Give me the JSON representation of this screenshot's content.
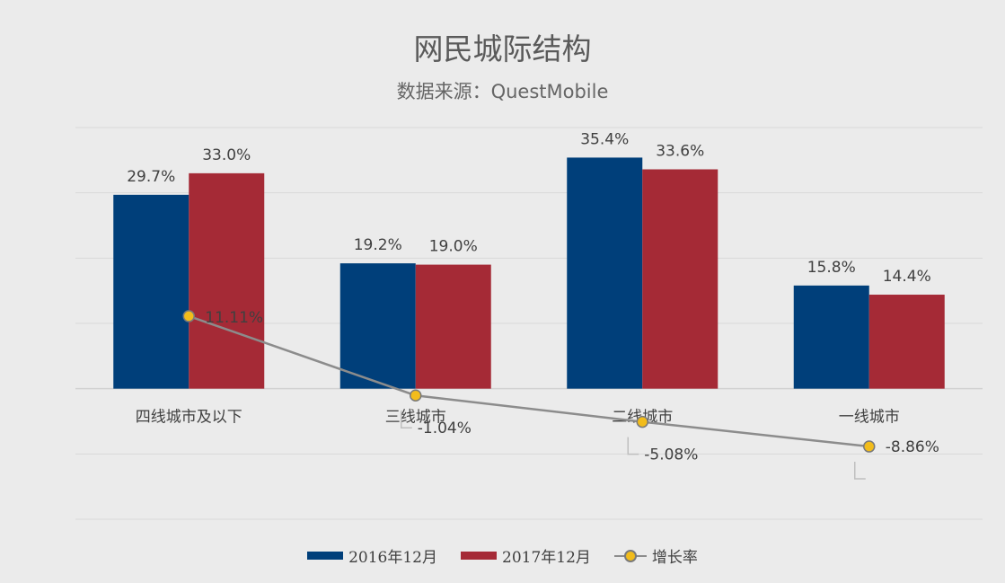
{
  "chart_data": {
    "type": "bar",
    "title": "网民城际结构",
    "subtitle": "数据来源：QuestMobile",
    "categories": [
      "四线城市及以下",
      "三线城市",
      "二线城市",
      "一线城市"
    ],
    "series": [
      {
        "name": "2016年12月",
        "kind": "bar",
        "color": "#003f7a",
        "values": [
          29.7,
          19.2,
          35.4,
          15.8
        ],
        "labels": [
          "29.7%",
          "19.2%",
          "35.4%",
          "15.8%"
        ]
      },
      {
        "name": "2017年12月",
        "kind": "bar",
        "color": "#a52a36",
        "values": [
          33.0,
          19.0,
          33.6,
          14.4
        ],
        "labels": [
          "33.0%",
          "19.0%",
          "33.6%",
          "14.4%"
        ]
      },
      {
        "name": "增长率",
        "kind": "line",
        "color": "#8c8c8c",
        "marker_color": "#f2bc1b",
        "values": [
          11.11,
          -1.04,
          -5.08,
          -8.86
        ],
        "labels": [
          "11.11%",
          "-1.04%",
          "-5.08%",
          "-8.86%"
        ]
      }
    ],
    "ylim": [
      -20,
      40
    ],
    "grid": true,
    "legend_position": "bottom"
  }
}
